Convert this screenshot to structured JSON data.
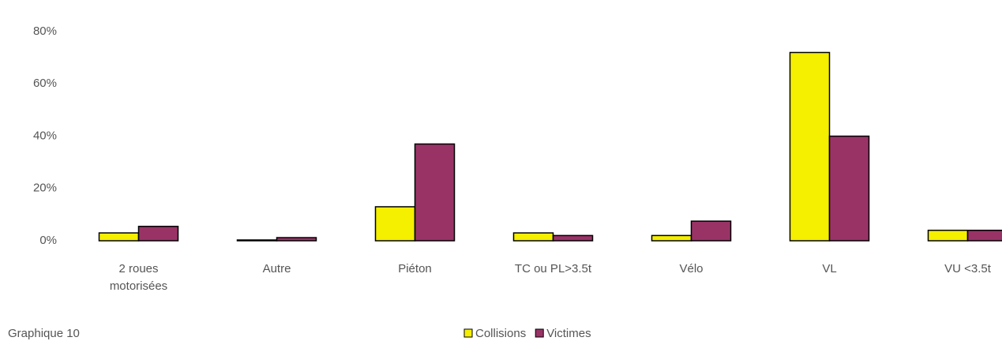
{
  "chart_data": {
    "type": "bar",
    "categories": [
      "2 roues motorisées",
      "Autre",
      "Piéton",
      "TC ou PL>3.5t",
      "Vélo",
      "VL",
      "VU <3.5t"
    ],
    "series": [
      {
        "name": "Collisions",
        "color": "#f5ef00",
        "values": [
          3,
          0.3,
          13,
          3,
          2,
          72,
          4
        ]
      },
      {
        "name": "Victimes",
        "color": "#993366",
        "values": [
          5.5,
          1.2,
          37,
          2,
          7.5,
          40,
          4
        ]
      }
    ],
    "ylim": [
      0,
      80
    ],
    "yticks": [
      {
        "value": 0,
        "label": "0%"
      },
      {
        "value": 20,
        "label": "20%"
      },
      {
        "value": 40,
        "label": "40%"
      },
      {
        "value": 60,
        "label": "60%"
      },
      {
        "value": 80,
        "label": "80%"
      }
    ],
    "footer": "Graphique 10"
  }
}
